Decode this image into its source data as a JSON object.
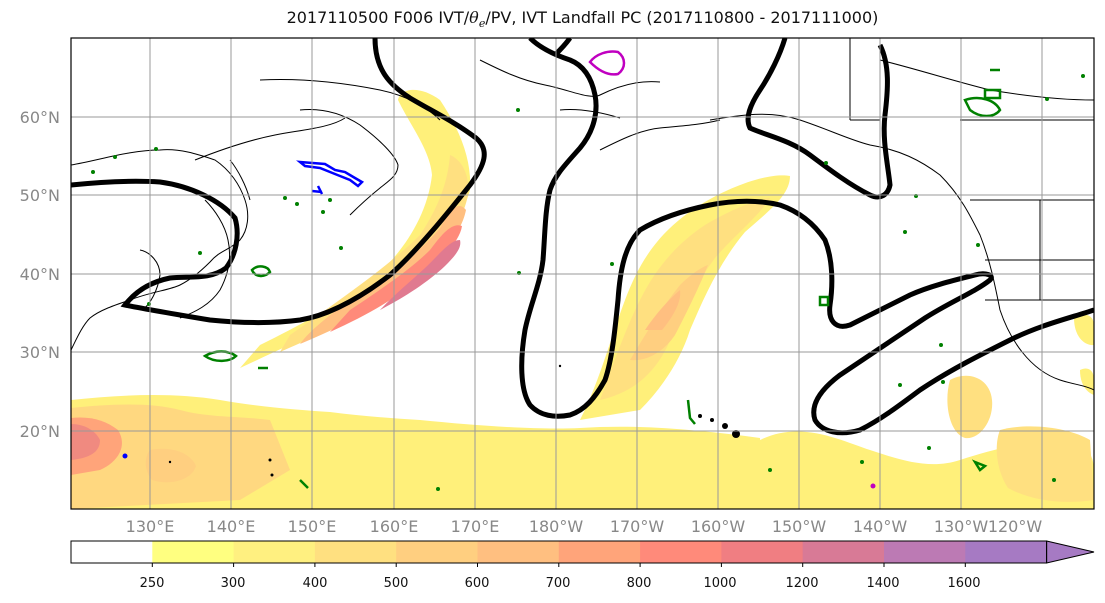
{
  "map": {
    "title_prefix": "2017110500 F006 IVT/",
    "title_theta": "θ",
    "title_theta_sub": "e",
    "title_suffix": "/PV, IVT Landfall PC (2017110800 - 2017111000)",
    "lat_labels": [
      "60°N",
      "50°N",
      "40°N",
      "30°N",
      "20°N"
    ],
    "lon_labels": [
      "130°E",
      "140°E",
      "150°E",
      "160°E",
      "170°E",
      "180°W",
      "170°W",
      "160°W",
      "150°W",
      "140°W",
      "130°W",
      "120°W"
    ],
    "colors": {
      "pv_contour": "#000000",
      "coast": "#000000",
      "theta_green": "#008000",
      "blue_contour": "#0000ff",
      "magenta_contour": "#c000c0",
      "grid": "#999999"
    }
  },
  "colorbar": {
    "levels": [
      "250",
      "300",
      "400",
      "500",
      "600",
      "700",
      "800",
      "1000",
      "1200",
      "1400",
      "1600"
    ],
    "colors": [
      "#ffffff",
      "#ffff80",
      "#fff080",
      "#ffe080",
      "#ffcf80",
      "#ffbf80",
      "#ffa47a",
      "#ff8a7a",
      "#f07e82",
      "#d87a96",
      "#bc7ab4",
      "#a67ac3"
    ]
  }
}
